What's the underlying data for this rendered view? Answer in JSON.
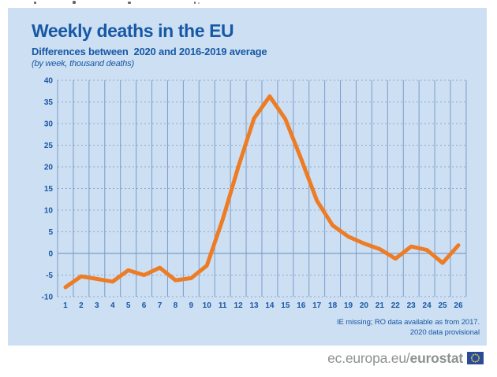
{
  "header": {
    "title": "Weekly deaths in the EU",
    "subtitle": "Differences between  2020 and 2016-2019 average",
    "unit_note": "(by week, thousand deaths)"
  },
  "chart_data": {
    "type": "line",
    "title": "Weekly deaths in the EU",
    "subtitle": "Differences between  2020 and 2016-2019 average",
    "unit": "thousand deaths",
    "xlabel": "week",
    "ylabel": "",
    "categories": [
      "1",
      "2",
      "3",
      "4",
      "5",
      "6",
      "7",
      "8",
      "9",
      "10",
      "11",
      "12",
      "13",
      "14",
      "15",
      "16",
      "17",
      "18",
      "19",
      "20",
      "21",
      "22",
      "23",
      "24",
      "25",
      "26"
    ],
    "values": [
      -7.8,
      -5.3,
      -5.9,
      -6.5,
      -3.9,
      -5,
      -3.3,
      -6.2,
      -5.7,
      -2.8,
      7.8,
      20,
      31.2,
      36.3,
      31,
      21.8,
      12.2,
      6.5,
      3.9,
      2.3,
      1,
      -1.2,
      1.6,
      0.8,
      -2.2,
      1.9
    ],
    "ylim": [
      -10,
      40
    ],
    "ytick_labels": [
      "40",
      "35",
      "30",
      "25",
      "20",
      "15",
      "10",
      "5",
      "0",
      "-5",
      "-10"
    ],
    "ytick_step": 5,
    "grid": "on",
    "legend": "none",
    "line_color": "#ed7c25"
  },
  "footnotes": {
    "line1": "IE missing; RO data available as from 2017.",
    "line2": "2020 data provisional"
  },
  "branding": {
    "url_prefix": "ec.europa.eu/",
    "url_bold": "eurostat",
    "flag_icon": "eu-flag-icon"
  },
  "colors": {
    "panel_bg": "#cddff2",
    "accent_blue": "#1758a6",
    "grid_solid": "#7b9dca",
    "grid_dashed": "#8fa9cf",
    "line_orange": "#ed7c25",
    "brand_gray": "#8d9192",
    "flag_blue": "#2a4b97",
    "flag_stars": "#ddca52"
  }
}
